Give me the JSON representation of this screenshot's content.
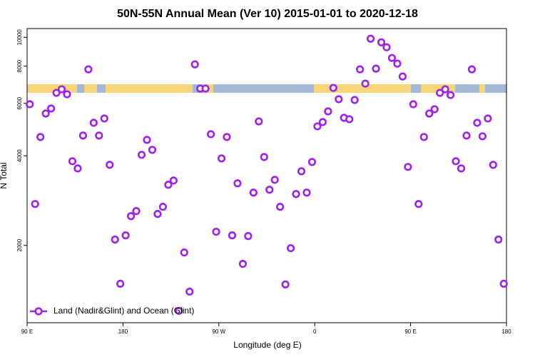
{
  "chart_data": {
    "type": "scatter",
    "title": "50N-55N Annual Mean (Ver 10)   2015-01-01 to 2020-12-18",
    "x_label": "Longitude (deg E)",
    "y_label": "N Total",
    "ylog": true,
    "legend": "bottom-left",
    "xlim": [
      90,
      540
    ],
    "xticks": [
      {
        "value": 90,
        "label": "90 E"
      },
      180,
      {
        "value": 270,
        "label": "90 W"
      },
      {
        "value": 360,
        "label": "0"
      },
      {
        "value": 450,
        "label": "90 E"
      },
      {
        "value": 540,
        "label": "180"
      }
    ],
    "ylim": [
      1100,
      10700
    ],
    "yticks": [
      2000,
      4000,
      6000,
      8000,
      10000
    ],
    "x": [
      92.5,
      97.5,
      102.5,
      107.5,
      112.5,
      117.5,
      122.5,
      127.5,
      132.5,
      137.5,
      142.5,
      147.5,
      152.5,
      157.5,
      162.5,
      167.5,
      172.5,
      177.5,
      182.5,
      187.5,
      192.5,
      197.5,
      202.5,
      207.5,
      212.5,
      217.5,
      222.5,
      227.5,
      232.5,
      237.5,
      242.5,
      247.5,
      252.5,
      257.5,
      262.5,
      267.5,
      272.5,
      277.5,
      282.5,
      287.5,
      292.5,
      297.5,
      302.5,
      307.5,
      312.5,
      317.5,
      322.5,
      327.5,
      332.5,
      337.5,
      342.5,
      347.5,
      352.5,
      357.5,
      362.5,
      367.5,
      372.5,
      377.5,
      382.5,
      387.5,
      392.5,
      397.5,
      402.5,
      407.5,
      412.5,
      417.5,
      422.5,
      427.5,
      432.5,
      437.5,
      442.5,
      447.5,
      452.5,
      457.5,
      462.5,
      467.5,
      472.5,
      477.5,
      482.5,
      487.5,
      492.5,
      497.5,
      502.5,
      507.5,
      512.5,
      517.5,
      522.5,
      527.5,
      532.5,
      537.5
    ],
    "series": [
      {
        "name": "Land (Nadir&Glint) and Ocean (Glint)",
        "color": "#a020f0",
        "values": [
          5960,
          2755,
          4626,
          5546,
          5766,
          6508,
          6690,
          6436,
          3835,
          3628,
          4677,
          7805,
          5163,
          4677,
          5337,
          3730,
          2093,
          1487,
          2162,
          2508,
          2609,
          4030,
          4524,
          4188,
          2551,
          2696,
          3197,
          3304,
          1206,
          1894,
          1399,
          8112,
          6727,
          6727,
          4727,
          2223,
          3920,
          4626,
          2162,
          3233,
          1734,
          2150,
          3009,
          5220,
          3963,
          3076,
          3322,
          2696,
          1479,
          1958,
          2976,
          3549,
          3009,
          3813,
          5023,
          5192,
          5639,
          6763,
          6195,
          5366,
          5308,
          6160,
          7805,
          6991,
          9890,
          7849,
          9622,
          9258,
          8524,
          8157,
          7386,
          3670,
          5960,
          2755,
          4626,
          5546,
          5734,
          6508,
          6690,
          6400,
          3835,
          3628,
          4677,
          7805,
          5163,
          4650,
          5337,
          3730,
          2093,
          1487
        ]
      }
    ]
  }
}
